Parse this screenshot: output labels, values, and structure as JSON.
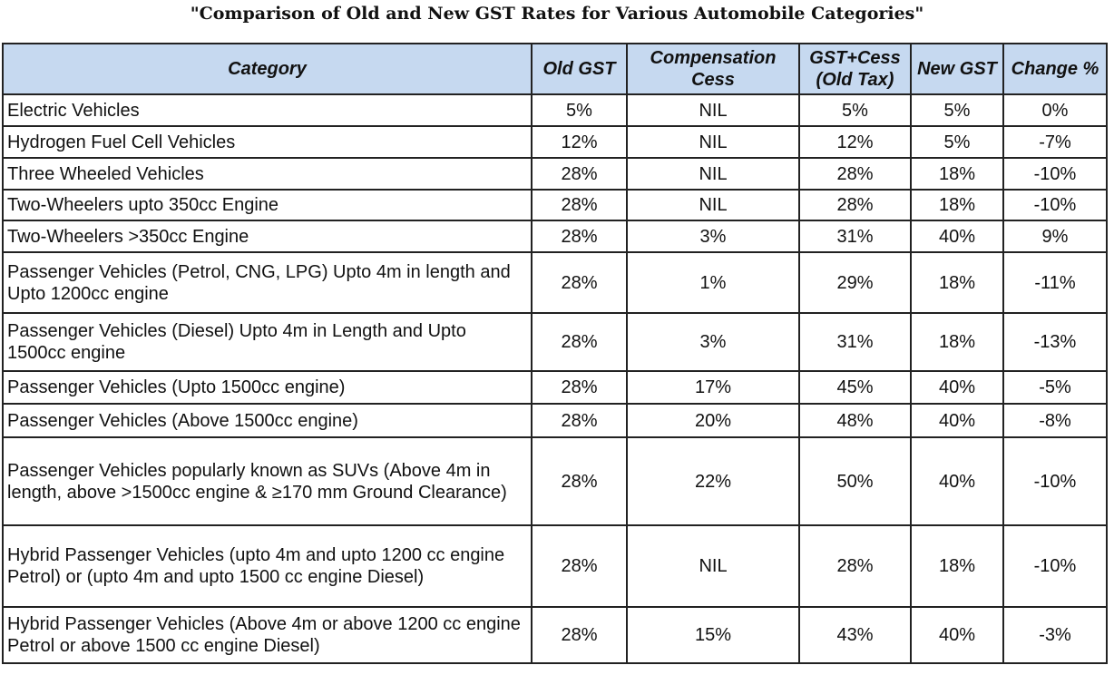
{
  "title": "\"Comparison of Old and New GST Rates for Various Automobile Categories\"",
  "colors": {
    "header_bg": "#c6d9f0",
    "border": "#222222"
  },
  "headers": [
    "Category",
    "Old GST",
    "Compensation Cess",
    "GST+Cess (Old Tax)",
    "New GST",
    "Change %"
  ],
  "rows": [
    [
      "Electric Vehicles",
      "5%",
      "NIL",
      "5%",
      "5%",
      "0%"
    ],
    [
      "Hydrogen Fuel Cell Vehicles",
      "12%",
      "NIL",
      "12%",
      "5%",
      "-7%"
    ],
    [
      "Three Wheeled Vehicles",
      "28%",
      "NIL",
      "28%",
      "18%",
      "-10%"
    ],
    [
      "Two-Wheelers upto 350cc Engine",
      "28%",
      "NIL",
      "28%",
      "18%",
      "-10%"
    ],
    [
      "Two-Wheelers >350cc Engine",
      "28%",
      "3%",
      "31%",
      "40%",
      "9%"
    ],
    [
      "Passenger Vehicles (Petrol, CNG, LPG) Upto 4m in length and Upto 1200cc engine",
      "28%",
      "1%",
      "29%",
      "18%",
      "-11%"
    ],
    [
      "Passenger Vehicles (Diesel) Upto 4m in Length and Upto 1500cc engine",
      "28%",
      "3%",
      "31%",
      "18%",
      "-13%"
    ],
    [
      "Passenger Vehicles (Upto 1500cc engine)",
      "28%",
      "17%",
      "45%",
      "40%",
      "-5%"
    ],
    [
      "Passenger Vehicles (Above 1500cc engine)",
      "28%",
      "20%",
      "48%",
      "40%",
      "-8%"
    ],
    [
      "Passenger Vehicles popularly known as SUVs (Above 4m in length, above >1500cc engine & ≥170 mm Ground Clearance)",
      "28%",
      "22%",
      "50%",
      "40%",
      "-10%"
    ],
    [
      "Hybrid Passenger Vehicles (upto 4m and upto 1200 cc engine Petrol) or (upto 4m and upto 1500 cc engine Diesel)",
      "28%",
      "NIL",
      "28%",
      "18%",
      "-10%"
    ],
    [
      "Hybrid Passenger Vehicles (Above 4m or above 1200 cc engine Petrol or above 1500 cc engine Diesel)",
      "28%",
      "15%",
      "43%",
      "40%",
      "-3%"
    ]
  ]
}
